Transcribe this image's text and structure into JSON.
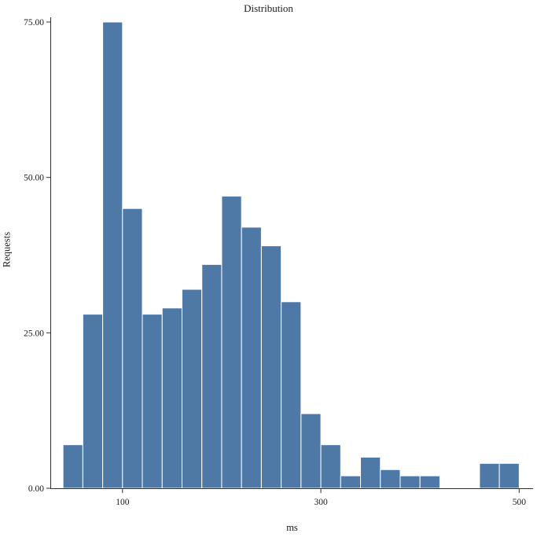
{
  "chart_data": {
    "type": "bar",
    "title": "Distribution",
    "xlabel": "ms",
    "ylabel": "Requests",
    "bar_color": "#4e79a7",
    "bar_stroke": "#ffffff",
    "axis_color": "#2f2f2f",
    "grid": false,
    "legend": "none",
    "xlim": [
      28,
      514
    ],
    "ylim": [
      0,
      75
    ],
    "bin_width": 20,
    "x_ticks": [
      {
        "value": 100,
        "label": "100"
      },
      {
        "value": 300,
        "label": "300"
      },
      {
        "value": 500,
        "label": "500"
      }
    ],
    "y_ticks": [
      {
        "value": 0,
        "label": "0.00"
      },
      {
        "value": 25,
        "label": "25.00"
      },
      {
        "value": 50,
        "label": "50.00"
      },
      {
        "value": 75,
        "label": "75.00"
      }
    ],
    "bins": [
      {
        "x0": 40,
        "x1": 60,
        "count": 7
      },
      {
        "x0": 60,
        "x1": 80,
        "count": 28
      },
      {
        "x0": 80,
        "x1": 100,
        "count": 75
      },
      {
        "x0": 100,
        "x1": 120,
        "count": 45
      },
      {
        "x0": 120,
        "x1": 140,
        "count": 28
      },
      {
        "x0": 140,
        "x1": 160,
        "count": 29
      },
      {
        "x0": 160,
        "x1": 180,
        "count": 32
      },
      {
        "x0": 180,
        "x1": 200,
        "count": 36
      },
      {
        "x0": 200,
        "x1": 220,
        "count": 47
      },
      {
        "x0": 220,
        "x1": 240,
        "count": 42
      },
      {
        "x0": 240,
        "x1": 260,
        "count": 39
      },
      {
        "x0": 260,
        "x1": 280,
        "count": 30
      },
      {
        "x0": 280,
        "x1": 300,
        "count": 12
      },
      {
        "x0": 300,
        "x1": 320,
        "count": 7
      },
      {
        "x0": 320,
        "x1": 340,
        "count": 2
      },
      {
        "x0": 340,
        "x1": 360,
        "count": 5
      },
      {
        "x0": 360,
        "x1": 380,
        "count": 3
      },
      {
        "x0": 380,
        "x1": 400,
        "count": 2
      },
      {
        "x0": 400,
        "x1": 420,
        "count": 2
      },
      {
        "x0": 420,
        "x1": 440,
        "count": 0
      },
      {
        "x0": 440,
        "x1": 460,
        "count": 0
      },
      {
        "x0": 460,
        "x1": 480,
        "count": 4
      },
      {
        "x0": 480,
        "x1": 500,
        "count": 4
      }
    ]
  }
}
